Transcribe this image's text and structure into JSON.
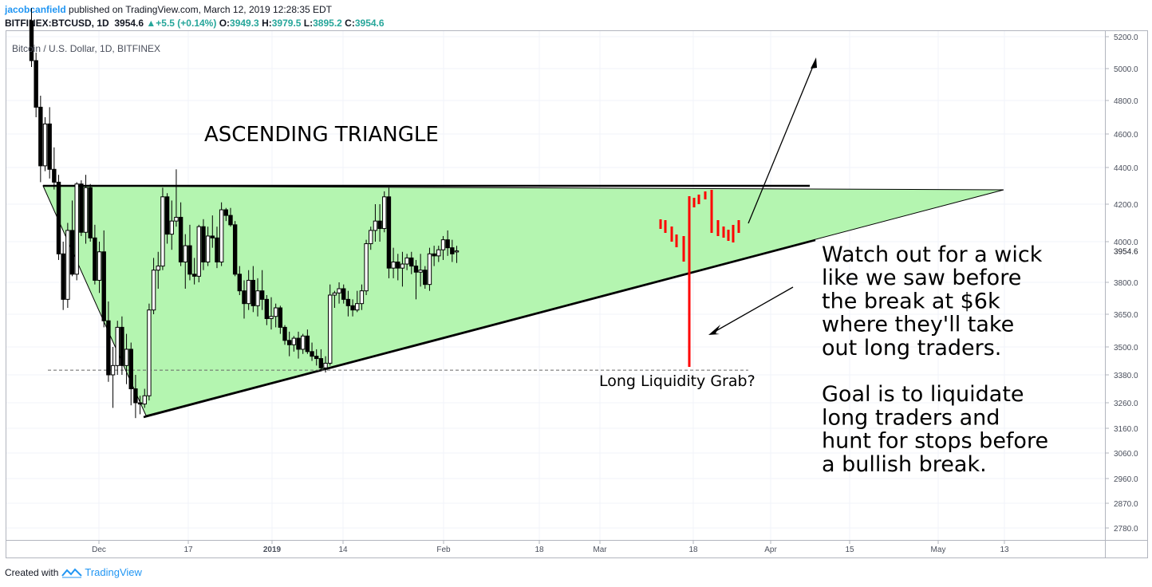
{
  "header": {
    "author": "jacobcanfield",
    "published": "published on TradingView.com, March 12, 2019 12:28:35 EDT",
    "symbol": "BITFINEX:BTCUSD, 1D",
    "last": "3954.6",
    "change": "+5.5 (+0.14%)",
    "open_label": "O:",
    "open": "3949.3",
    "high_label": "H:",
    "high": "3979.5",
    "low_label": "L:",
    "low": "3895.2",
    "close_label": "C:",
    "close": "3954.6"
  },
  "footer": {
    "created_with": "Created with",
    "brand": "TradingView"
  },
  "chart_data": {
    "type": "candlestick",
    "title": "Bitcoin / U.S. Dollar, 1D, BITFINEX",
    "y_ticks": [
      5200,
      5000,
      4800,
      4600,
      4400,
      4200,
      4000,
      3800,
      3650,
      3500,
      3380,
      3260,
      3160,
      3060,
      2960,
      2870,
      2780
    ],
    "y_tick_labels": [
      "5200.0",
      "5000.0",
      "4800.0",
      "4600.0",
      "4400.0",
      "4200.0",
      "4000.0",
      "3800.0",
      "3650.0",
      "3500.0",
      "3380.0",
      "3260.0",
      "3160.0",
      "3060.0",
      "2960.0",
      "2870.0",
      "2780.0"
    ],
    "x_ticks": [
      {
        "label": "Dec",
        "bold": false
      },
      {
        "label": "17",
        "bold": false
      },
      {
        "label": "2019",
        "bold": true
      },
      {
        "label": "14",
        "bold": false
      },
      {
        "label": "Feb",
        "bold": false
      },
      {
        "label": "18",
        "bold": false
      },
      {
        "label": "Mar",
        "bold": false
      },
      {
        "label": "18",
        "bold": false
      },
      {
        "label": "Apr",
        "bold": false
      },
      {
        "label": "15",
        "bold": false
      },
      {
        "label": "May",
        "bold": false
      },
      {
        "label": "13",
        "bold": false
      }
    ],
    "last_price_label": "3954.6",
    "candles_ohlc": [
      [
        5300,
        5380,
        5010,
        5050
      ],
      [
        5050,
        5100,
        4700,
        4760
      ],
      [
        4760,
        4830,
        4320,
        4410
      ],
      [
        4410,
        4700,
        4380,
        4660
      ],
      [
        4660,
        4760,
        4340,
        4390
      ],
      [
        4390,
        4520,
        4280,
        4320
      ],
      [
        4320,
        4360,
        3910,
        3940
      ],
      [
        3940,
        4000,
        3670,
        3720
      ],
      [
        3720,
        4100,
        3680,
        4060
      ],
      [
        4060,
        4220,
        3830,
        3840
      ],
      [
        3840,
        4320,
        3810,
        4310
      ],
      [
        4310,
        4330,
        4030,
        4050
      ],
      [
        4050,
        4360,
        3990,
        4290
      ],
      [
        4290,
        4310,
        4000,
        4020
      ],
      [
        4020,
        4090,
        3790,
        3810
      ],
      [
        3810,
        4000,
        3750,
        3950
      ],
      [
        3950,
        4060,
        3590,
        3620
      ],
      [
        3620,
        3710,
        3350,
        3380
      ],
      [
        3380,
        3500,
        3240,
        3420
      ],
      [
        3420,
        3620,
        3380,
        3590
      ],
      [
        3590,
        3640,
        3380,
        3420
      ],
      [
        3420,
        3560,
        3340,
        3490
      ],
      [
        3490,
        3520,
        3250,
        3320
      ],
      [
        3320,
        3380,
        3200,
        3260
      ],
      [
        3260,
        3290,
        3215,
        3255
      ],
      [
        3255,
        3320,
        3240,
        3290
      ],
      [
        3290,
        3700,
        3270,
        3670
      ],
      [
        3670,
        3920,
        3650,
        3860
      ],
      [
        3860,
        3950,
        3770,
        3880
      ],
      [
        3880,
        4290,
        3860,
        4240
      ],
      [
        4240,
        4260,
        3990,
        4040
      ],
      [
        4040,
        4220,
        3960,
        4110
      ],
      [
        4110,
        4390,
        4080,
        4130
      ],
      [
        4130,
        4210,
        3880,
        3900
      ],
      [
        3900,
        4040,
        3770,
        3980
      ],
      [
        3980,
        4090,
        3810,
        3840
      ],
      [
        3840,
        3920,
        3790,
        3830
      ],
      [
        3830,
        4090,
        3800,
        4080
      ],
      [
        4080,
        4120,
        3860,
        3900
      ],
      [
        3900,
        4080,
        3880,
        4030
      ],
      [
        4030,
        4140,
        3970,
        4020
      ],
      [
        4020,
        4080,
        3870,
        3900
      ],
      [
        3900,
        4210,
        3880,
        4170
      ],
      [
        4170,
        4180,
        4110,
        4140
      ],
      [
        4140,
        4180,
        4080,
        4090
      ],
      [
        4090,
        4110,
        3830,
        3840
      ],
      [
        3840,
        3880,
        3740,
        3760
      ],
      [
        3760,
        3810,
        3630,
        3700
      ],
      [
        3700,
        3860,
        3670,
        3810
      ],
      [
        3810,
        3880,
        3660,
        3690
      ],
      [
        3690,
        3820,
        3640,
        3760
      ],
      [
        3760,
        3860,
        3670,
        3720
      ],
      [
        3720,
        3740,
        3600,
        3630
      ],
      [
        3630,
        3730,
        3580,
        3640
      ],
      [
        3640,
        3700,
        3590,
        3680
      ],
      [
        3680,
        3690,
        3560,
        3590
      ],
      [
        3590,
        3600,
        3510,
        3530
      ],
      [
        3530,
        3570,
        3460,
        3510
      ],
      [
        3510,
        3550,
        3480,
        3540
      ],
      [
        3540,
        3570,
        3450,
        3490
      ],
      [
        3490,
        3560,
        3470,
        3550
      ],
      [
        3550,
        3580,
        3470,
        3480
      ],
      [
        3480,
        3520,
        3440,
        3460
      ],
      [
        3460,
        3490,
        3420,
        3450
      ],
      [
        3450,
        3490,
        3400,
        3410
      ],
      [
        3410,
        3460,
        3390,
        3430
      ],
      [
        3430,
        3790,
        3420,
        3740
      ],
      [
        3740,
        3760,
        3680,
        3750
      ],
      [
        3750,
        3800,
        3700,
        3770
      ],
      [
        3770,
        3790,
        3700,
        3720
      ],
      [
        3720,
        3760,
        3640,
        3690
      ],
      [
        3690,
        3720,
        3640,
        3670
      ],
      [
        3670,
        3760,
        3660,
        3700
      ],
      [
        3700,
        3790,
        3670,
        3760
      ],
      [
        3760,
        4010,
        3740,
        3990
      ],
      [
        3990,
        4080,
        3960,
        4060
      ],
      [
        4060,
        4200,
        4000,
        4110
      ],
      [
        4110,
        4200,
        4000,
        4070
      ],
      [
        4070,
        4270,
        4050,
        4240
      ],
      [
        4240,
        4290,
        3820,
        3870
      ],
      [
        3870,
        3970,
        3820,
        3900
      ],
      [
        3900,
        3940,
        3810,
        3870
      ],
      [
        3870,
        3950,
        3780,
        3890
      ],
      [
        3890,
        3940,
        3860,
        3920
      ],
      [
        3920,
        3950,
        3840,
        3880
      ],
      [
        3880,
        3910,
        3720,
        3850
      ],
      [
        3850,
        3940,
        3780,
        3860
      ],
      [
        3860,
        3880,
        3770,
        3790
      ],
      [
        3790,
        3970,
        3760,
        3940
      ],
      [
        3940,
        3980,
        3880,
        3930
      ],
      [
        3930,
        3980,
        3900,
        3960
      ],
      [
        3960,
        4030,
        3910,
        4010
      ],
      [
        4010,
        4060,
        3930,
        3970
      ],
      [
        3970,
        4010,
        3900,
        3940
      ],
      [
        3949.3,
        3979.5,
        3895.2,
        3954.6
      ]
    ],
    "annotations": {
      "pattern_label": "ASCENDING TRIANGLE",
      "liquidity_label": "Long Liquidity Grab?",
      "note_lines": [
        "Watch out for a wick",
        "like we saw before",
        "the break at $6k",
        "where they'll take",
        "out long traders.",
        "",
        "Goal is to liquidate",
        "long traders and",
        "hunt for stops before",
        "a bullish break."
      ],
      "resistance": 4300,
      "support_low": 3210,
      "liquidity_level": 3400
    },
    "colors": {
      "up": "#ffffff",
      "down": "#000000",
      "triangle_fill": "#b4f5b0",
      "projection": "#ff0000",
      "grid": "#f0f3fa",
      "text": "#131722",
      "brand": "#2196f3"
    }
  }
}
